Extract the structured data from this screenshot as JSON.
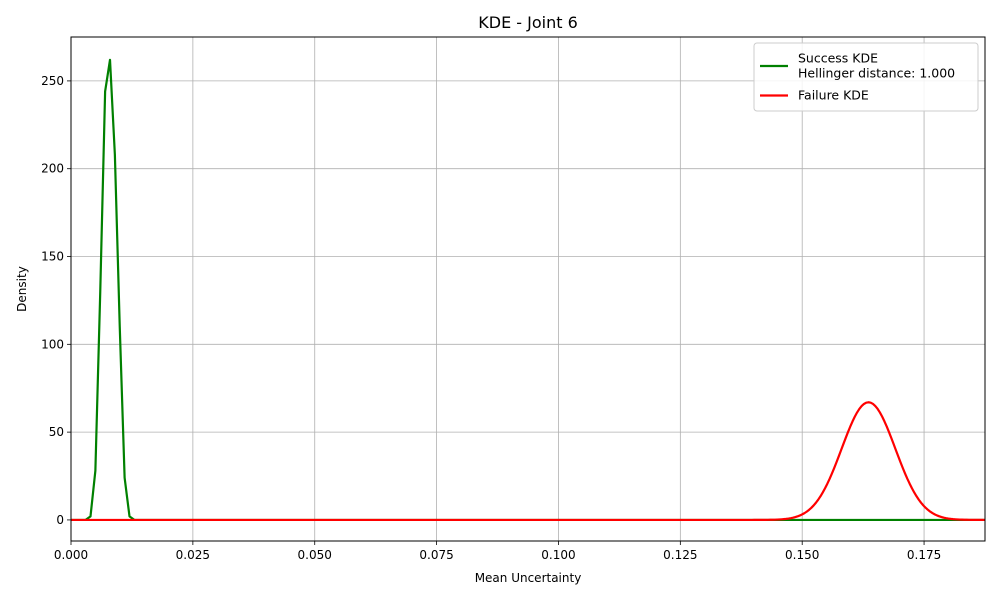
{
  "chart_data": {
    "type": "line",
    "title": "KDE - Joint 6",
    "xlabel": "Mean Uncertainty",
    "ylabel": "Density",
    "xlim": [
      0.0,
      0.1875
    ],
    "ylim": [
      -12,
      275
    ],
    "xticks": [
      0.0,
      0.025,
      0.05,
      0.075,
      0.1,
      0.125,
      0.15,
      0.175
    ],
    "xtick_labels": [
      "0.000",
      "0.025",
      "0.050",
      "0.075",
      "0.100",
      "0.125",
      "0.150",
      "0.175"
    ],
    "yticks": [
      0,
      50,
      100,
      150,
      200,
      250
    ],
    "ytick_labels": [
      "0",
      "50",
      "100",
      "150",
      "200",
      "250"
    ],
    "grid": true,
    "legend_position": "top-right",
    "series": [
      {
        "name": "Success KDE",
        "legend_lines": [
          "Success KDE",
          "Hellinger distance: 1.000"
        ],
        "color": "#008000",
        "x": [
          0.0,
          0.002,
          0.003,
          0.004,
          0.005,
          0.006,
          0.007,
          0.008,
          0.009,
          0.01,
          0.011,
          0.012,
          0.013,
          0.015,
          0.03,
          0.06,
          0.1,
          0.15,
          0.1875
        ],
        "y": [
          0,
          0,
          0,
          2,
          28,
          130,
          244,
          262,
          208,
          110,
          24,
          2,
          0,
          0,
          0,
          0,
          0,
          0,
          0
        ]
      },
      {
        "name": "Failure KDE",
        "legend_lines": [
          "Failure KDE"
        ],
        "color": "#ff0000",
        "gaussian": {
          "amplitude": 67,
          "mean": 0.1636,
          "sd": 0.0055
        },
        "x_range": [
          0.0,
          0.1875
        ]
      }
    ]
  }
}
